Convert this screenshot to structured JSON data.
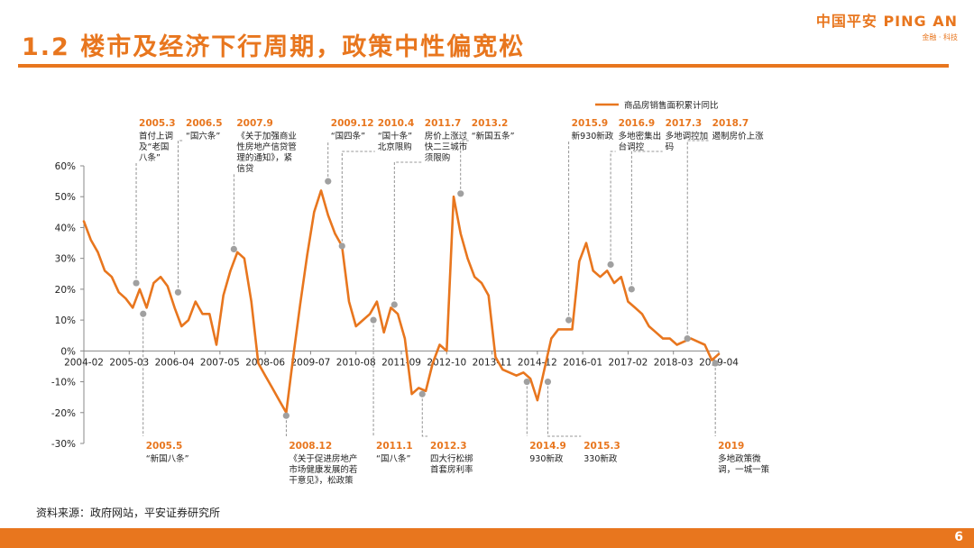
{
  "header": {
    "title": "1.2 楼市及经济下行周期，政策中性偏宽松",
    "logo_main": "中国平安 PING AN",
    "logo_sub": "金融 · 科技"
  },
  "footer": {
    "source": "资料来源：政府网站，平安证券研究所",
    "page_number": "6"
  },
  "colors": {
    "accent": "#e8761e",
    "line": "#e8761e",
    "marker": "#a0a0a0"
  },
  "chart_data": {
    "type": "line",
    "title": "",
    "xlabel": "",
    "ylabel": "",
    "x_ticks": [
      "2004-02",
      "2005-03",
      "2006-04",
      "2007-05",
      "2008-06",
      "2009-07",
      "2010-08",
      "2011-09",
      "2012-10",
      "2013-11",
      "2014-12",
      "2016-01",
      "2017-02",
      "2018-03",
      "2019-04"
    ],
    "y_ticks": [
      "60%",
      "50%",
      "40%",
      "30%",
      "20%",
      "10%",
      "0%",
      "-10%",
      "-20%",
      "-30%"
    ],
    "ylim": [
      -30,
      60
    ],
    "x_range": [
      "2004-02",
      "2019-04"
    ],
    "legend": {
      "position": "top-right",
      "entries": [
        "商品房销售面积累计同比"
      ]
    },
    "series": [
      {
        "name": "商品房销售面积累计同比",
        "points": [
          [
            "2004-02",
            42
          ],
          [
            "2004-04",
            36
          ],
          [
            "2004-06",
            32
          ],
          [
            "2004-08",
            26
          ],
          [
            "2004-10",
            24
          ],
          [
            "2004-12",
            19
          ],
          [
            "2005-02",
            17
          ],
          [
            "2005-04",
            14
          ],
          [
            "2005-06",
            20
          ],
          [
            "2005-08",
            14
          ],
          [
            "2005-10",
            22
          ],
          [
            "2005-12",
            24
          ],
          [
            "2006-02",
            21
          ],
          [
            "2006-04",
            14
          ],
          [
            "2006-06",
            8
          ],
          [
            "2006-08",
            10
          ],
          [
            "2006-10",
            16
          ],
          [
            "2006-12",
            12
          ],
          [
            "2007-02",
            12
          ],
          [
            "2007-04",
            2
          ],
          [
            "2007-06",
            18
          ],
          [
            "2007-08",
            26
          ],
          [
            "2007-10",
            32
          ],
          [
            "2007-12",
            30
          ],
          [
            "2008-02",
            16
          ],
          [
            "2008-04",
            -4
          ],
          [
            "2008-06",
            -8
          ],
          [
            "2008-08",
            -12
          ],
          [
            "2008-10",
            -16
          ],
          [
            "2008-12",
            -20
          ],
          [
            "2009-02",
            -2
          ],
          [
            "2009-04",
            15
          ],
          [
            "2009-06",
            31
          ],
          [
            "2009-08",
            45
          ],
          [
            "2009-10",
            52
          ],
          [
            "2009-12",
            44
          ],
          [
            "2010-02",
            38
          ],
          [
            "2010-04",
            34
          ],
          [
            "2010-06",
            16
          ],
          [
            "2010-08",
            8
          ],
          [
            "2010-10",
            10
          ],
          [
            "2010-12",
            12
          ],
          [
            "2011-02",
            16
          ],
          [
            "2011-04",
            6
          ],
          [
            "2011-06",
            14
          ],
          [
            "2011-08",
            12
          ],
          [
            "2011-10",
            4
          ],
          [
            "2011-12",
            -14
          ],
          [
            "2012-02",
            -12
          ],
          [
            "2012-04",
            -13
          ],
          [
            "2012-06",
            -4
          ],
          [
            "2012-08",
            2
          ],
          [
            "2012-10",
            0
          ],
          [
            "2012-12",
            50
          ],
          [
            "2013-02",
            38
          ],
          [
            "2013-04",
            30
          ],
          [
            "2013-06",
            24
          ],
          [
            "2013-08",
            22
          ],
          [
            "2013-10",
            18
          ],
          [
            "2013-12",
            -2
          ],
          [
            "2014-02",
            -6
          ],
          [
            "2014-04",
            -7
          ],
          [
            "2014-06",
            -8
          ],
          [
            "2014-08",
            -7
          ],
          [
            "2014-10",
            -9
          ],
          [
            "2014-12",
            -16
          ],
          [
            "2015-02",
            -6
          ],
          [
            "2015-04",
            4
          ],
          [
            "2015-06",
            7
          ],
          [
            "2015-08",
            7
          ],
          [
            "2015-10",
            7
          ],
          [
            "2015-12",
            29
          ],
          [
            "2016-02",
            35
          ],
          [
            "2016-04",
            26
          ],
          [
            "2016-06",
            24
          ],
          [
            "2016-08",
            26
          ],
          [
            "2016-10",
            22
          ],
          [
            "2016-12",
            24
          ],
          [
            "2017-02",
            16
          ],
          [
            "2017-04",
            14
          ],
          [
            "2017-06",
            12
          ],
          [
            "2017-08",
            8
          ],
          [
            "2017-10",
            6
          ],
          [
            "2017-12",
            4
          ],
          [
            "2018-02",
            4
          ],
          [
            "2018-04",
            2
          ],
          [
            "2018-06",
            3
          ],
          [
            "2018-08",
            4
          ],
          [
            "2018-10",
            3
          ],
          [
            "2018-12",
            2
          ],
          [
            "2019-02",
            -3
          ],
          [
            "2019-04",
            -1
          ]
        ]
      }
    ],
    "annotations": [
      {
        "date": "2005.3",
        "text": [
          "首付上调",
          "及“老国",
          "八条”"
        ],
        "point": [
          "2005-05",
          22
        ],
        "above": true
      },
      {
        "date": "2006.5",
        "text": [
          "“国六条”"
        ],
        "point": [
          "2006-05",
          19
        ],
        "above": true
      },
      {
        "date": "2007.9",
        "text": [
          "《关于加强商业",
          "性房地产信贷管",
          "理的通知》，紧",
          "信贷"
        ],
        "point": [
          "2007-09",
          33
        ],
        "above": true
      },
      {
        "date": "2009.12",
        "text": [
          "“国四条”"
        ],
        "point": [
          "2009-12",
          55
        ],
        "above": true
      },
      {
        "date": "2010.4",
        "text": [
          "“国十条”",
          "北京限购"
        ],
        "point": [
          "2010-04",
          34
        ],
        "above": true
      },
      {
        "date": "2011.7",
        "text": [
          "房价上涨过",
          "快二三城市",
          "须限购"
        ],
        "point": [
          "2011-07",
          15
        ],
        "above": true
      },
      {
        "date": "2013.2",
        "text": [
          "“新国五条”"
        ],
        "point": [
          "2013-02",
          51
        ],
        "above": true
      },
      {
        "date": "2015.9",
        "text": [
          "新930新政"
        ],
        "point": [
          "2015-09",
          10
        ],
        "above": true
      },
      {
        "date": "2016.9",
        "text": [
          "多地密集出",
          "台调控"
        ],
        "point": [
          "2016-09",
          28
        ],
        "above": true
      },
      {
        "date": "2017.3",
        "text": [
          "多地调控加",
          "码"
        ],
        "point": [
          "2017-03",
          20
        ],
        "above": true
      },
      {
        "date": "2018.7",
        "text": [
          "遏制房价上涨"
        ],
        "point": [
          "2018-07",
          4
        ],
        "above": true
      },
      {
        "date": "2005.5",
        "text": [
          "“新国八条”"
        ],
        "point": [
          "2005-07",
          12
        ],
        "above": false
      },
      {
        "date": "2008.12",
        "text": [
          "《关于促进房地产",
          "市场健康发展的若",
          "干意见》，松政策"
        ],
        "point": [
          "2008-12",
          -21
        ],
        "above": false
      },
      {
        "date": "2011.1",
        "text": [
          "“国八条”"
        ],
        "point": [
          "2011-01",
          10
        ],
        "above": false
      },
      {
        "date": "2012.3",
        "text": [
          "四大行松绑",
          "首套房利率"
        ],
        "point": [
          "2012-03",
          -14
        ],
        "above": false
      },
      {
        "date": "2014.9",
        "text": [
          "930新政"
        ],
        "point": [
          "2014-09",
          -10
        ],
        "above": false
      },
      {
        "date": "2015.3",
        "text": [
          "330新政"
        ],
        "point": [
          "2015-03",
          -10
        ],
        "above": false
      },
      {
        "date": "2019",
        "text": [
          "多地政策微",
          "调，一城一策"
        ],
        "point": [
          "2019-03",
          -4
        ],
        "above": false
      }
    ]
  }
}
